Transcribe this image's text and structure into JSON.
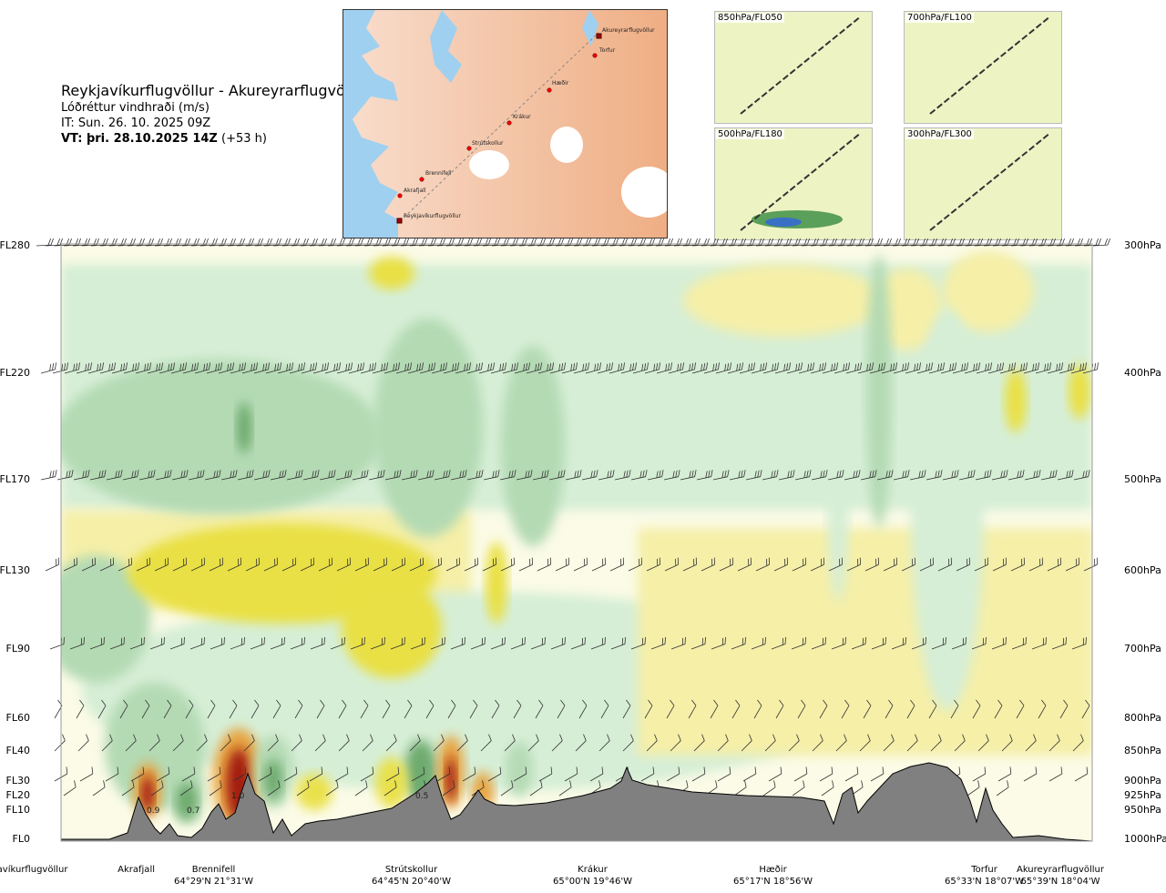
{
  "header": {
    "route": "Reykjavíkurflugvöllur - Akureyrarflugvöllur",
    "parameter": "Lóðréttur vindhraði (m/s)",
    "issue_time": "IT: Sun. 26. 10. 2025 09Z",
    "valid_time_bold": "VT: þri. 28.10.2025 14Z",
    "valid_time_offset": "(+53 h)"
  },
  "route_map": {
    "stations": [
      "Akureyrarflugvöllur",
      "Torfur",
      "Hæðir",
      "Krákur",
      "Strútskollur",
      "Brennifell",
      "Akrafjall",
      "Reykjavíkurflugvöllur"
    ]
  },
  "level_maps": [
    {
      "label": "850hPa/FL050"
    },
    {
      "label": "700hPa/FL100"
    },
    {
      "label": "500hPa/FL180"
    },
    {
      "label": "300hPa/FL300"
    }
  ],
  "chart_data": {
    "type": "heatmap",
    "title": "Lóðréttur vindhraði (m/s)",
    "y_left_ticks": [
      "FL280",
      "FL220",
      "FL170",
      "FL130",
      "FL90",
      "FL60",
      "FL40",
      "FL30",
      "FL20",
      "FL10",
      "FL0"
    ],
    "y_right_ticks": [
      "300hPa",
      "400hPa",
      "500hPa",
      "600hPa",
      "700hPa",
      "800hPa",
      "850hPa",
      "900hPa",
      "925hPa",
      "950hPa",
      "1000hPa"
    ],
    "pressure_levels_hpa": [
      300,
      400,
      500,
      600,
      700,
      800,
      850,
      900,
      925,
      950,
      1000
    ],
    "ylim": [
      1000,
      300
    ],
    "x_stations": [
      {
        "name": "Reykjavíkurflugvöllur",
        "coord": ""
      },
      {
        "name": "Akrafjall",
        "coord": ""
      },
      {
        "name": "Brennifell",
        "coord": "64°29'N 21°31'W"
      },
      {
        "name": "Strútskollur",
        "coord": "64°45'N 20°40'W"
      },
      {
        "name": "Krákur",
        "coord": "65°00'N 19°46'W"
      },
      {
        "name": "Hæðir",
        "coord": "65°17'N 18°56'W"
      },
      {
        "name": "Torfur",
        "coord": "65°33'N 18°07'W"
      },
      {
        "name": "Akureyrarflugvöllur",
        "coord": "65°39'N 18°04'W"
      }
    ],
    "annotations": [
      "0.9",
      "0.7",
      "1.0",
      "0.5"
    ],
    "colors": {
      "strong_down": "#6aa86a",
      "mod_down": "#b4dab4",
      "weak_down": "#d6eed6",
      "neutral": "#fbfbe7",
      "weak_up": "#f5efa8",
      "mod_up": "#e9e044",
      "strong_up": "#e8a03a",
      "very_strong_up": "#a01810",
      "terrain": "#808080"
    },
    "grid": false
  }
}
